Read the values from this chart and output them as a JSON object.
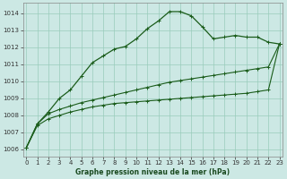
{
  "title": "Graphe pression niveau de la mer (hPa)",
  "bg_color": "#cce8e4",
  "grid_color": "#99ccbb",
  "line_color": "#1a5c1a",
  "x_ticks": [
    0,
    1,
    2,
    3,
    4,
    5,
    6,
    7,
    8,
    9,
    10,
    11,
    12,
    13,
    14,
    15,
    16,
    17,
    18,
    19,
    20,
    21,
    22,
    23
  ],
  "y_ticks": [
    1006,
    1007,
    1008,
    1009,
    1010,
    1011,
    1012,
    1013,
    1014
  ],
  "ylim": [
    1005.6,
    1014.6
  ],
  "xlim": [
    -0.3,
    23.3
  ],
  "series": [
    {
      "values": [
        1006.1,
        1007.4,
        1007.8,
        1008.0,
        1008.2,
        1008.35,
        1008.5,
        1008.6,
        1008.7,
        1008.75,
        1008.8,
        1008.85,
        1008.9,
        1008.95,
        1009.0,
        1009.05,
        1009.1,
        1009.15,
        1009.2,
        1009.25,
        1009.3,
        1009.4,
        1009.5,
        1012.2
      ],
      "marker": "+",
      "linewidth": 0.8,
      "markersize": 2.5
    },
    {
      "values": [
        1006.1,
        1007.5,
        1008.1,
        1008.35,
        1008.55,
        1008.75,
        1008.9,
        1009.05,
        1009.2,
        1009.35,
        1009.5,
        1009.65,
        1009.8,
        1009.95,
        1010.05,
        1010.15,
        1010.25,
        1010.35,
        1010.45,
        1010.55,
        1010.65,
        1010.75,
        1010.85,
        1012.2
      ],
      "marker": "+",
      "linewidth": 0.8,
      "markersize": 2.5
    },
    {
      "values": [
        1006.1,
        1007.5,
        1008.2,
        1009.0,
        1009.5,
        1010.3,
        1011.1,
        1011.5,
        1011.9,
        1012.05,
        1012.5,
        1013.1,
        1013.55,
        1014.1,
        1014.1,
        1013.85,
        1013.2,
        1012.5,
        1012.6,
        1012.7,
        1012.6,
        1012.6,
        1012.3,
        1012.2
      ],
      "marker": "+",
      "linewidth": 0.9,
      "markersize": 2.5
    }
  ],
  "tick_fontsize": 5,
  "xlabel_fontsize": 5.5,
  "xlabel_fontweight": "bold",
  "xlabel_color": "#1a4a20"
}
